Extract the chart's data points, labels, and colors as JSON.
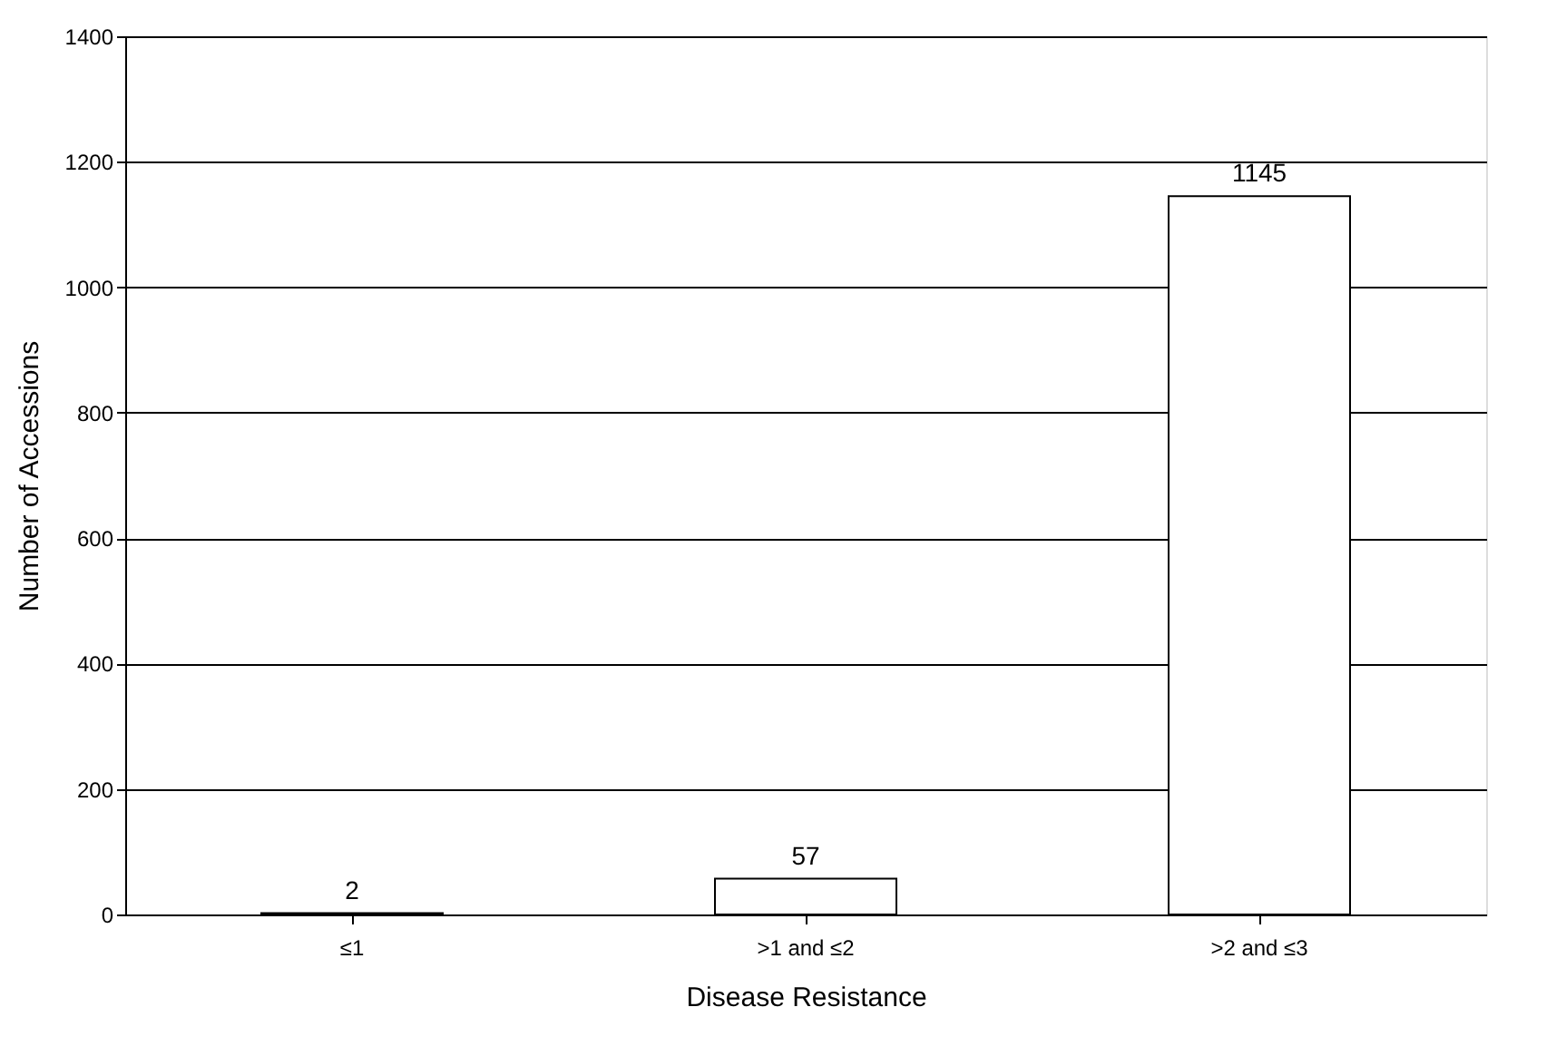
{
  "chart_data": {
    "type": "bar",
    "xlabel": "Disease Resistance",
    "ylabel": "Number of Accessions",
    "categories": [
      "≤1",
      ">1 and ≤2",
      ">2 and ≤3"
    ],
    "values": [
      2,
      57,
      1145
    ],
    "color": "#ffffff",
    "ylim": [
      0,
      1400
    ],
    "yticks": [
      0,
      200,
      400,
      600,
      800,
      1000,
      1200,
      1400
    ],
    "grid": "y",
    "data_labels": true
  }
}
